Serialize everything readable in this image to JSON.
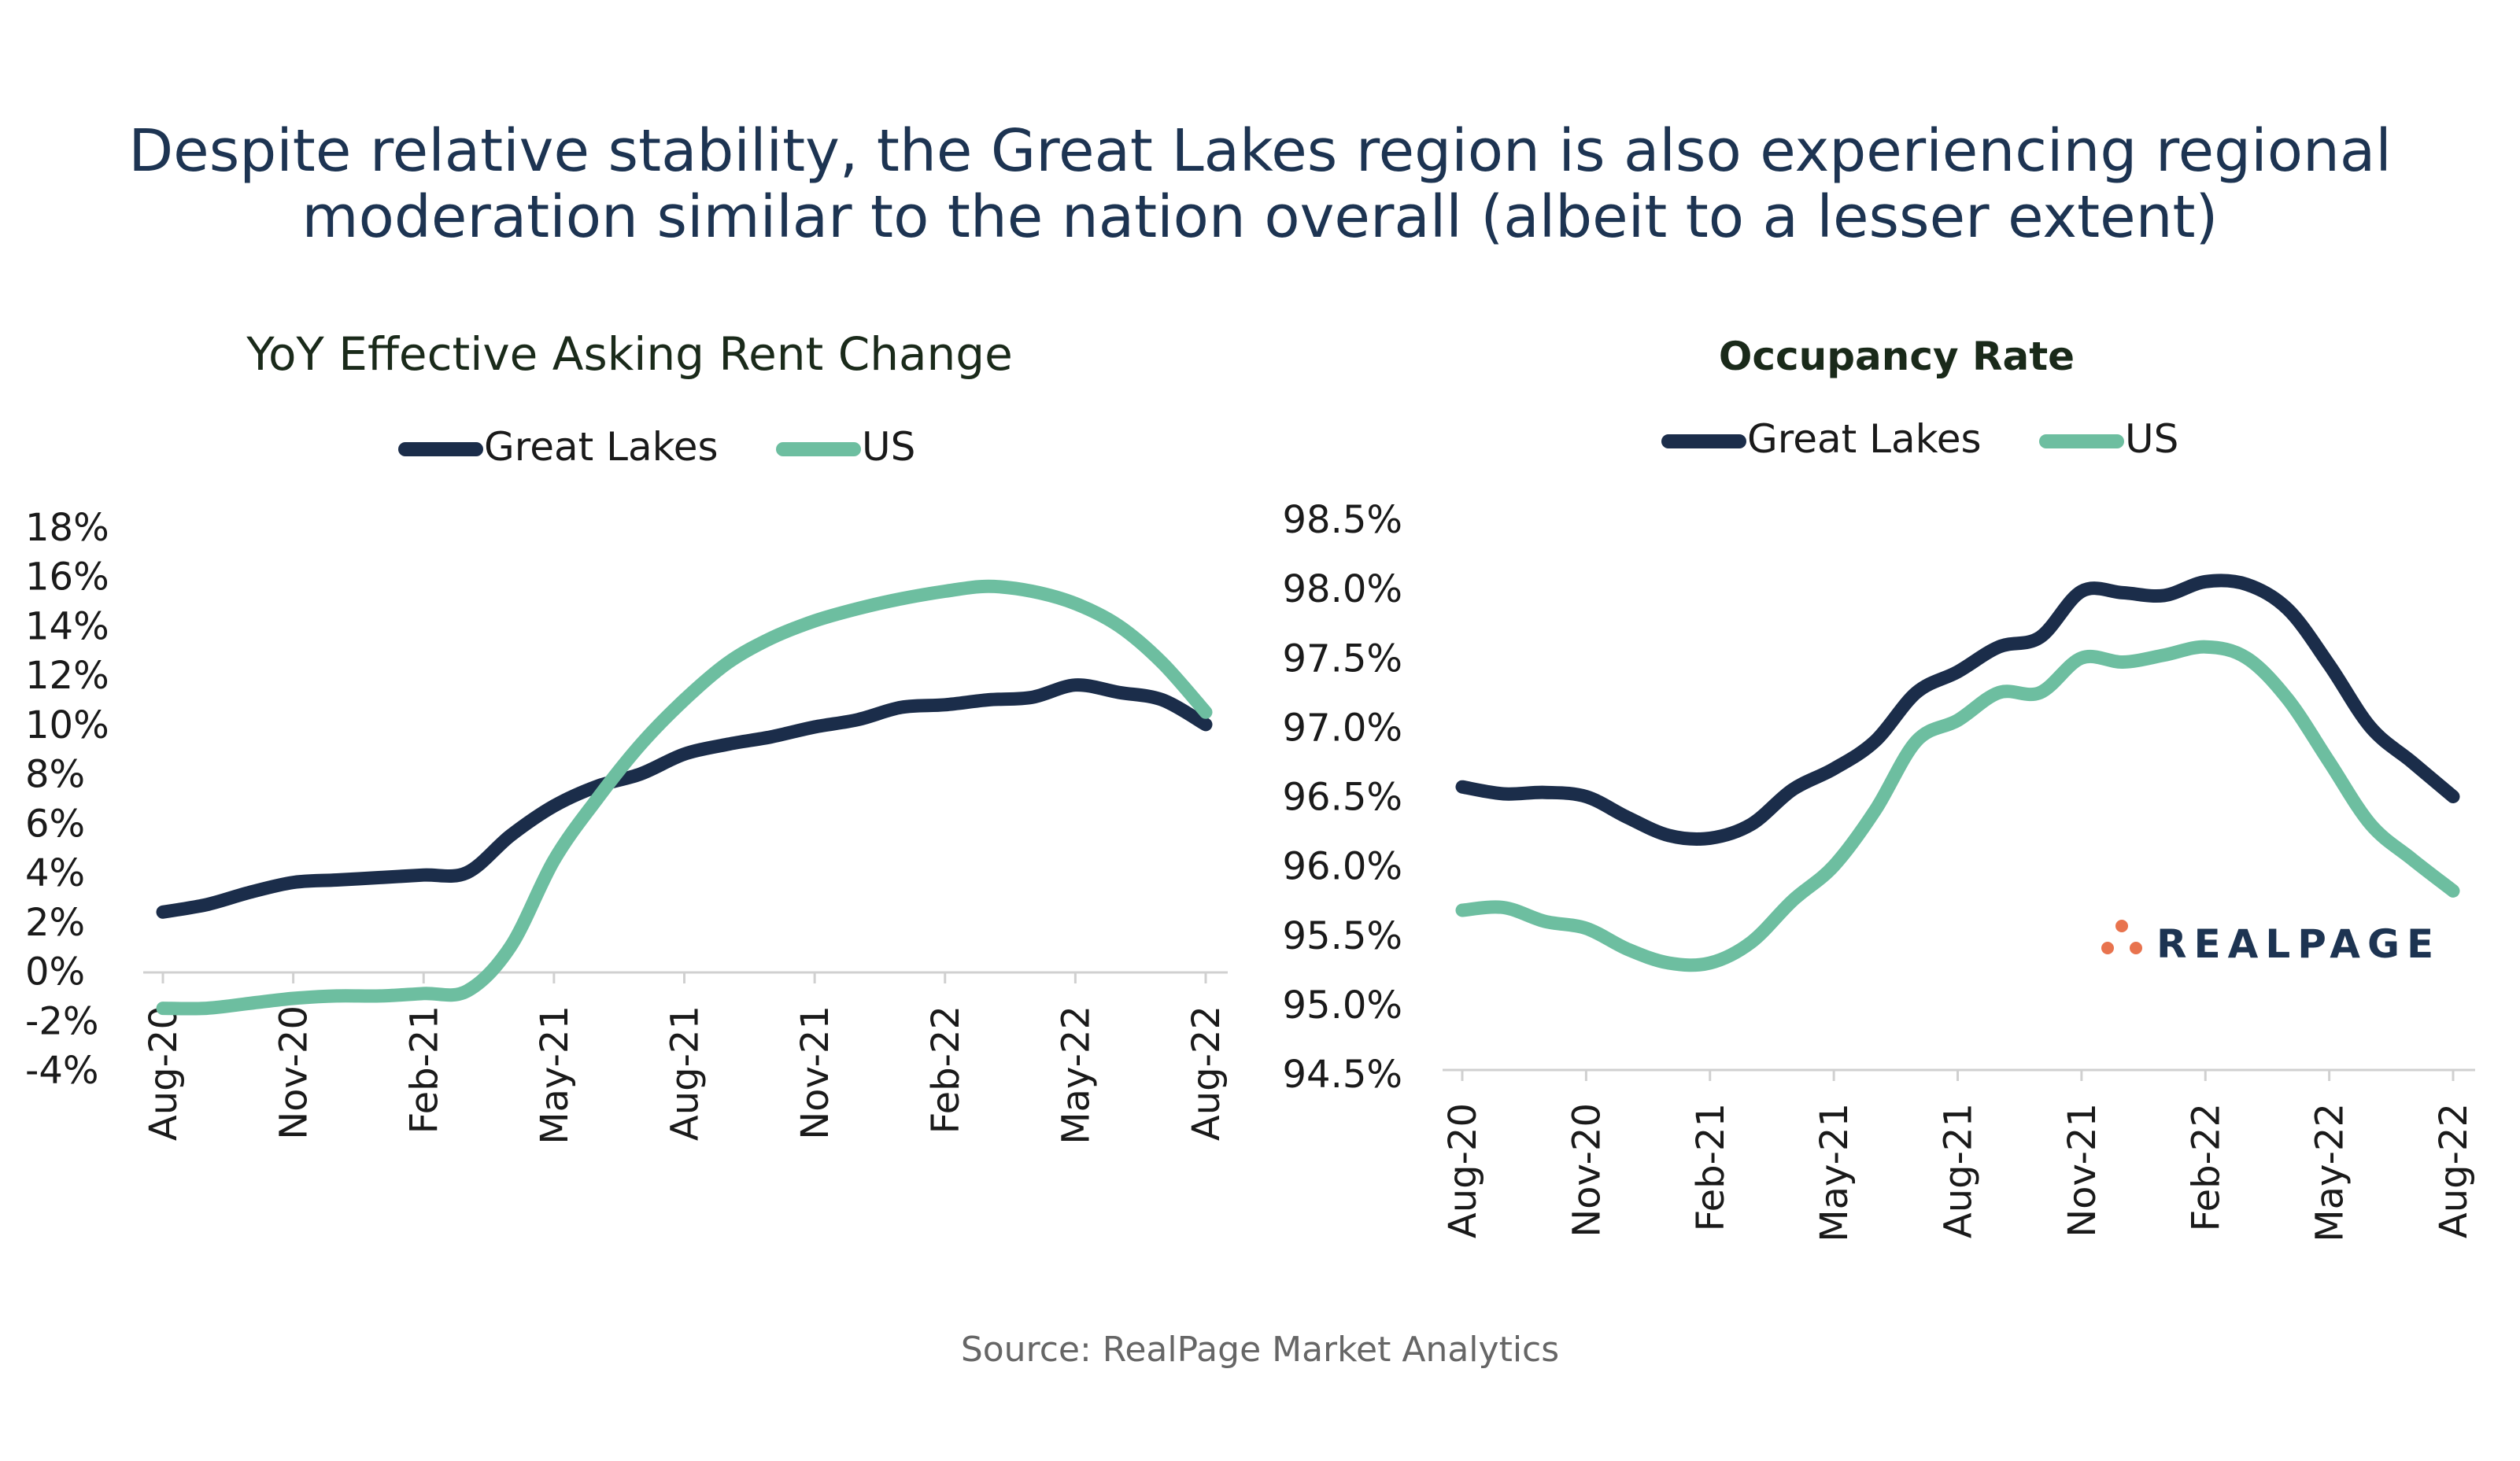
{
  "headline": {
    "line1": "Despite relative stability, the Great Lakes region is also experiencing regional",
    "line2": "moderation similar to the nation overall (albeit to a lesser extent)"
  },
  "source": "Source: RealPage Market Analytics",
  "logo": {
    "text": "REALPAGE",
    "dot_color": "#e8734e",
    "text_color": "#1d3452"
  },
  "colors": {
    "great_lakes": "#1b2d4a",
    "us": "#6dbea0",
    "axis": "#d0d0d0",
    "text": "#1a1a1a"
  },
  "chart_data": [
    {
      "type": "line",
      "title": "YoY Effective Asking Rent Change",
      "x": [
        "Aug-20",
        "Sep-20",
        "Oct-20",
        "Nov-20",
        "Dec-20",
        "Jan-21",
        "Feb-21",
        "Mar-21",
        "Apr-21",
        "May-21",
        "Jun-21",
        "Jul-21",
        "Aug-21",
        "Sep-21",
        "Oct-21",
        "Nov-21",
        "Dec-21",
        "Jan-22",
        "Feb-22",
        "Mar-22",
        "Apr-22",
        "May-22",
        "Jun-22",
        "Jul-22",
        "Aug-22"
      ],
      "tick_labels": [
        "Aug-20",
        "Nov-20",
        "Feb-21",
        "May-21",
        "Aug-21",
        "Nov-21",
        "Feb-22",
        "May-22",
        "Aug-22"
      ],
      "series": [
        {
          "name": "Great Lakes",
          "values": [
            2.4,
            2.7,
            3.2,
            3.6,
            3.7,
            3.8,
            3.9,
            4.0,
            5.5,
            6.7,
            7.5,
            8.0,
            8.8,
            9.2,
            9.5,
            9.9,
            10.2,
            10.7,
            10.8,
            11.0,
            11.1,
            11.6,
            11.3,
            11.0,
            10.0
          ]
        },
        {
          "name": "US",
          "values": [
            -1.5,
            -1.5,
            -1.3,
            -1.1,
            -1.0,
            -1.0,
            -0.9,
            -0.8,
            1.0,
            4.5,
            7.0,
            9.2,
            11.0,
            12.5,
            13.5,
            14.2,
            14.7,
            15.1,
            15.4,
            15.6,
            15.4,
            14.9,
            14.0,
            12.5,
            10.5
          ]
        }
      ],
      "y_ticks": [
        "18%",
        "16%",
        "14%",
        "12%",
        "10%",
        "8%",
        "6%",
        "4%",
        "2%",
        "0%",
        "-2%",
        "-4%"
      ],
      "ylim": [
        -4,
        18
      ],
      "legend": "top-center",
      "grid": false
    },
    {
      "type": "line",
      "title": "Occupancy Rate",
      "x": [
        "Aug-20",
        "Sep-20",
        "Oct-20",
        "Nov-20",
        "Dec-20",
        "Jan-21",
        "Feb-21",
        "Mar-21",
        "Apr-21",
        "May-21",
        "Jun-21",
        "Jul-21",
        "Aug-21",
        "Sep-21",
        "Oct-21",
        "Nov-21",
        "Dec-21",
        "Jan-22",
        "Feb-22",
        "Mar-22",
        "Apr-22",
        "May-22",
        "Jun-22",
        "Jul-22",
        "Aug-22"
      ],
      "tick_labels": [
        "Aug-20",
        "Nov-20",
        "Feb-21",
        "May-21",
        "Aug-21",
        "Nov-21",
        "Feb-22",
        "May-22",
        "Aug-22"
      ],
      "series": [
        {
          "name": "Great Lakes",
          "values": [
            96.57,
            96.52,
            96.53,
            96.5,
            96.35,
            96.22,
            96.2,
            96.3,
            96.55,
            96.7,
            96.9,
            97.25,
            97.4,
            97.58,
            97.65,
            97.98,
            97.97,
            97.95,
            98.05,
            98.03,
            97.85,
            97.45,
            97.0,
            96.75,
            96.5
          ]
        },
        {
          "name": "US",
          "values": [
            95.68,
            95.7,
            95.6,
            95.55,
            95.4,
            95.3,
            95.3,
            95.45,
            95.75,
            96.0,
            96.4,
            96.9,
            97.05,
            97.25,
            97.25,
            97.5,
            97.47,
            97.52,
            97.58,
            97.5,
            97.2,
            96.75,
            96.3,
            96.05,
            95.82
          ]
        }
      ],
      "y_ticks": [
        "98.5%",
        "98.0%",
        "97.5%",
        "97.0%",
        "96.5%",
        "96.0%",
        "95.5%",
        "95.0%",
        "94.5%"
      ],
      "ylim": [
        94.5,
        98.5
      ],
      "legend": "top-center",
      "grid": false
    }
  ]
}
